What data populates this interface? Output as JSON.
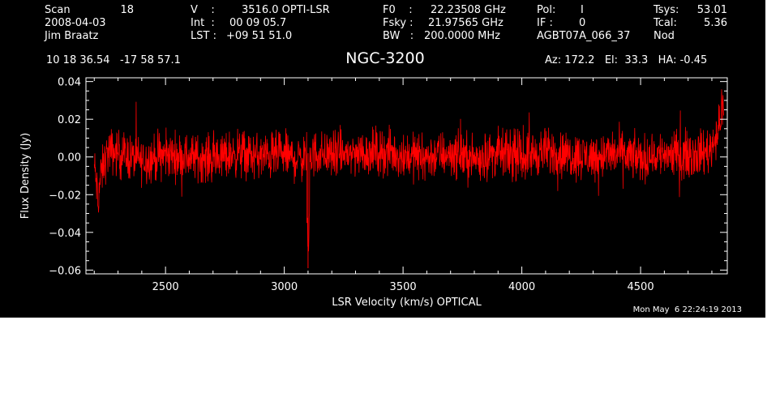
{
  "header": {
    "col1": [
      "Scan",
      "2008-04-03",
      "Jim Braatz"
    ],
    "scan_number": "18",
    "col2": [
      "V    :",
      "Int  :",
      "LST :"
    ],
    "col2_values": [
      "3516.0 OPTI-LSR",
      "00 09 05.7",
      "+09 51 51.0"
    ],
    "col3": [
      "F0    :",
      "Fsky :",
      "BW   :"
    ],
    "col3_values": [
      "22.23508 GHz",
      "21.97565 GHz",
      "200.0000 MHz"
    ],
    "col4": [
      "Pol:",
      "IF :",
      "AGBT07A_066_37"
    ],
    "col4_values": [
      "I",
      "0"
    ],
    "col5": [
      "Tsys:",
      "Tcal:",
      "Nod"
    ],
    "col5_values": [
      "53.01",
      "5.36"
    ],
    "coords": "10 18 36.54   -17 58 57.1",
    "source": "NGC-3200",
    "pointing": "Az: 172.2   El:  33.3   HA: -0.45",
    "timestamp": "Mon May  6 22:24:19 2013"
  },
  "chart_data": {
    "type": "line",
    "xlabel": "LSR Velocity (km/s) OPTICAL",
    "ylabel": "Flux Density (Jy)",
    "xlim": [
      2165,
      4865
    ],
    "ylim": [
      -0.062,
      0.042
    ],
    "xticks": [
      2500,
      3000,
      3500,
      4000,
      4500
    ],
    "yticks": [
      -0.06,
      -0.04,
      -0.02,
      0.0,
      0.02,
      0.04
    ],
    "ytick_labels": [
      "−0.06",
      "−0.04",
      "−0.02",
      "0.00",
      "0.02",
      "0.04"
    ],
    "line_color": "#ff0000",
    "series": [
      {
        "x": [
          2200,
          2210,
          2215,
          2225,
          2240,
          2260,
          2300,
          2400,
          2500,
          2600,
          2700,
          2800,
          2900,
          3000,
          3050,
          3090,
          3100,
          3110,
          3150,
          3200,
          3300,
          3400,
          3500,
          3600,
          3700,
          3800,
          3900,
          4000,
          4100,
          4200,
          4300,
          4400,
          4500,
          4600,
          4700,
          4780,
          4800,
          4810,
          4820,
          4830,
          4840,
          4845,
          4850
        ],
        "y": [
          -0.005,
          -0.015,
          -0.025,
          -0.012,
          -0.004,
          0.003,
          0.002,
          -0.002,
          0.001,
          0.0,
          -0.001,
          0.002,
          0.0,
          0.001,
          -0.001,
          0.0,
          -0.059,
          0.001,
          0.002,
          0.001,
          0.002,
          0.003,
          0.001,
          0.0,
          0.002,
          -0.001,
          0.002,
          0.0,
          0.003,
          0.001,
          0.0,
          0.002,
          -0.001,
          0.002,
          0.001,
          0.003,
          0.005,
          0.01,
          0.012,
          0.014,
          0.025,
          0.03,
          0.022
        ]
      }
    ]
  }
}
